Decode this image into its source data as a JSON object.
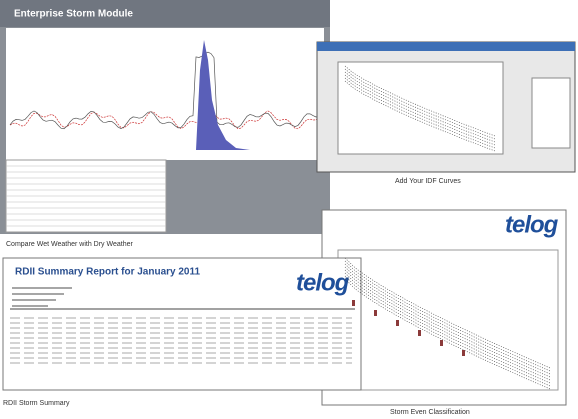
{
  "window": {
    "title": "Enterprise Storm Module",
    "caption": "Compare Wet Weather with Dry Weather"
  },
  "idf_dialog": {
    "caption": "Add Your IDF Curves"
  },
  "report": {
    "title": "RDII Summary Report for January 2011",
    "logo": "telog",
    "caption": "RDII Storm Summary"
  },
  "classification": {
    "logo": "telog",
    "caption": "Storm Even Classification"
  }
}
